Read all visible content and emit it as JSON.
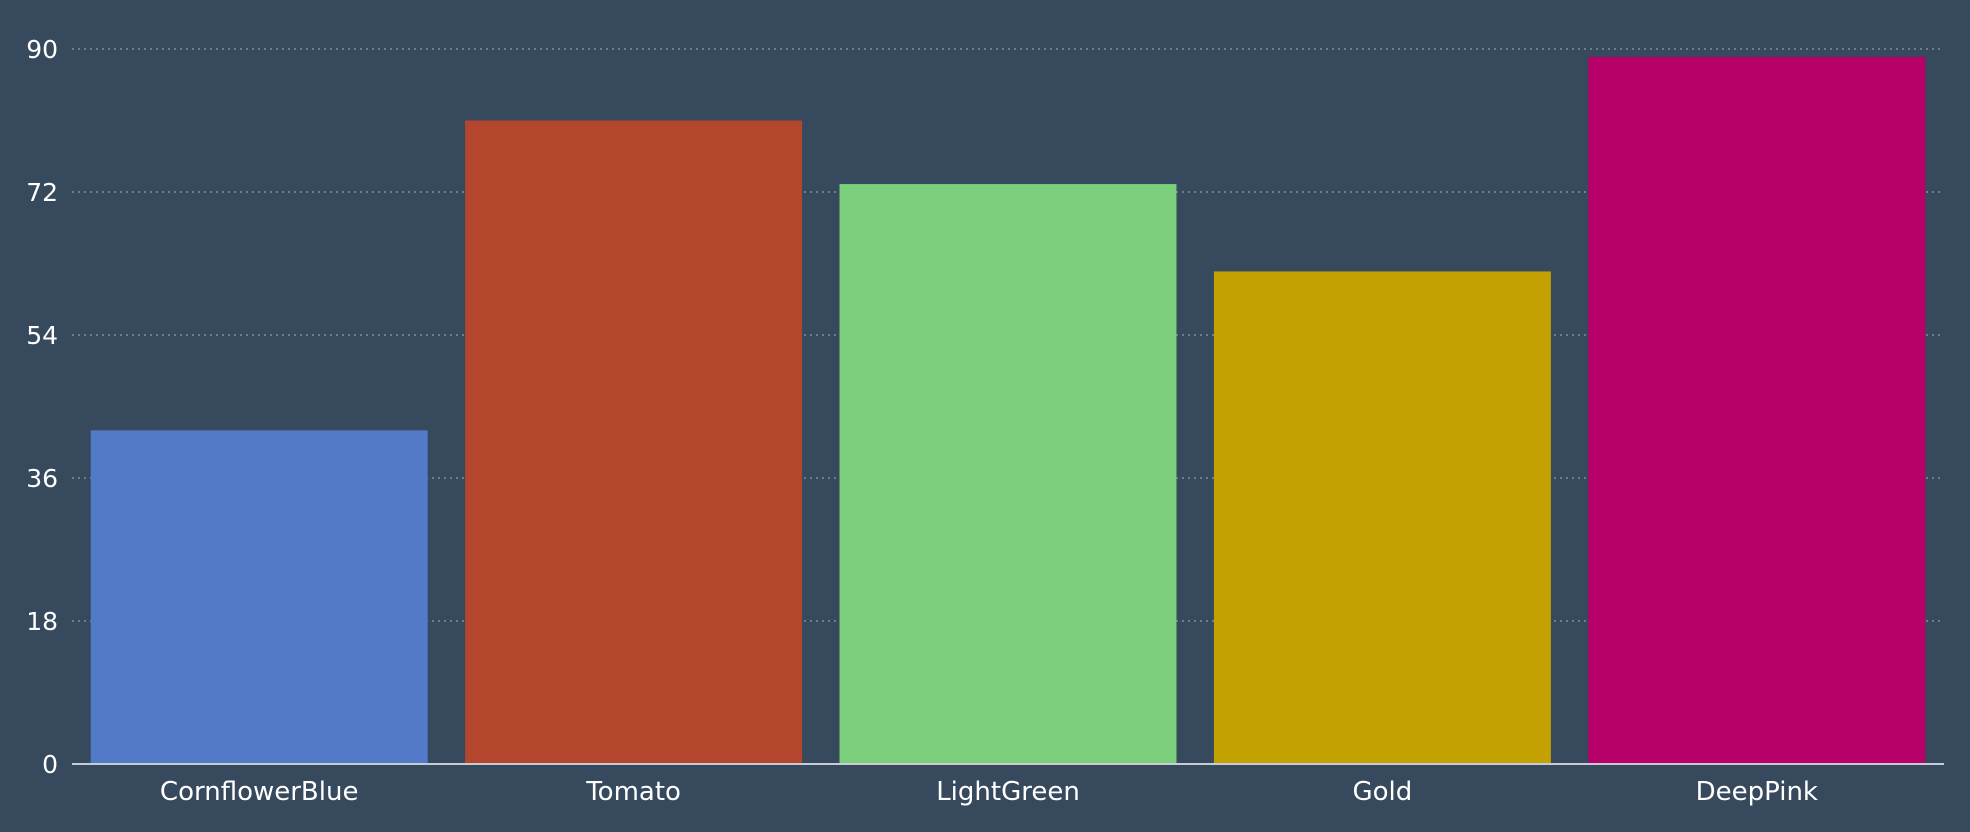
{
  "chart_data": {
    "type": "bar",
    "categories": [
      "CornflowerBlue",
      "Tomato",
      "LightGreen",
      "Gold",
      "DeepPink"
    ],
    "values": [
      42,
      81,
      73,
      62,
      89
    ],
    "colors": [
      "#527ac8",
      "#b4462e",
      "#7ccf7b",
      "#c2a100",
      "#b70068"
    ],
    "title": "",
    "xlabel": "",
    "ylabel": "",
    "ylim": [
      0,
      90
    ],
    "yticks": [
      "0",
      "18",
      "36",
      "54",
      "72",
      "90"
    ],
    "grid": true,
    "legend": "none"
  },
  "theme": {
    "background": "#36495d",
    "text_color": "#ffffff",
    "grid_color": "#a8b3bd"
  }
}
